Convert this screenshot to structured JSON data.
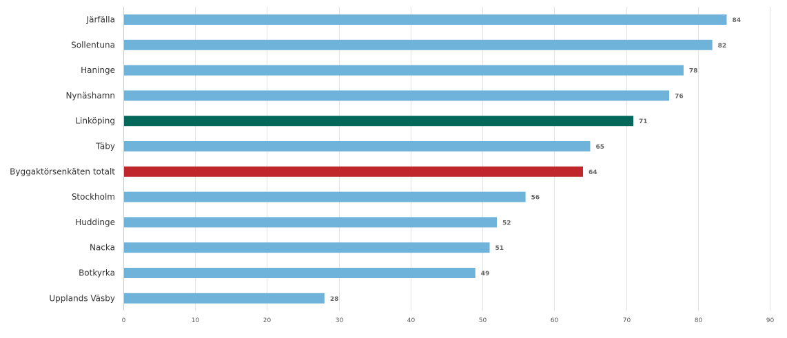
{
  "chart_data": {
    "type": "bar",
    "orientation": "horizontal",
    "categories": [
      "Järfälla",
      "Sollentuna",
      "Haninge",
      "Nynäshamn",
      "Linköping",
      "Täby",
      "Byggaktörsenkäten totalt",
      "Stockholm",
      "Huddinge",
      "Nacka",
      "Botkyrka",
      "Upplands Väsby"
    ],
    "values": [
      84,
      82,
      78,
      76,
      71,
      65,
      64,
      56,
      52,
      51,
      49,
      28
    ],
    "value_labels": [
      "84",
      "82",
      "78",
      "76",
      "71",
      "65",
      "64",
      "56",
      "52",
      "51",
      "49",
      "28"
    ],
    "bar_colors": [
      "#6fb3db",
      "#6fb3db",
      "#6fb3db",
      "#6fb3db",
      "#03675a",
      "#6fb3db",
      "#c0272d",
      "#6fb3db",
      "#6fb3db",
      "#6fb3db",
      "#6fb3db",
      "#6fb3db"
    ],
    "xticks": [
      "0",
      "10",
      "20",
      "30",
      "40",
      "50",
      "60",
      "70",
      "80",
      "90"
    ],
    "xlim": [
      0,
      90
    ],
    "grid": "vertical",
    "title": "",
    "xlabel": "",
    "ylabel": ""
  }
}
